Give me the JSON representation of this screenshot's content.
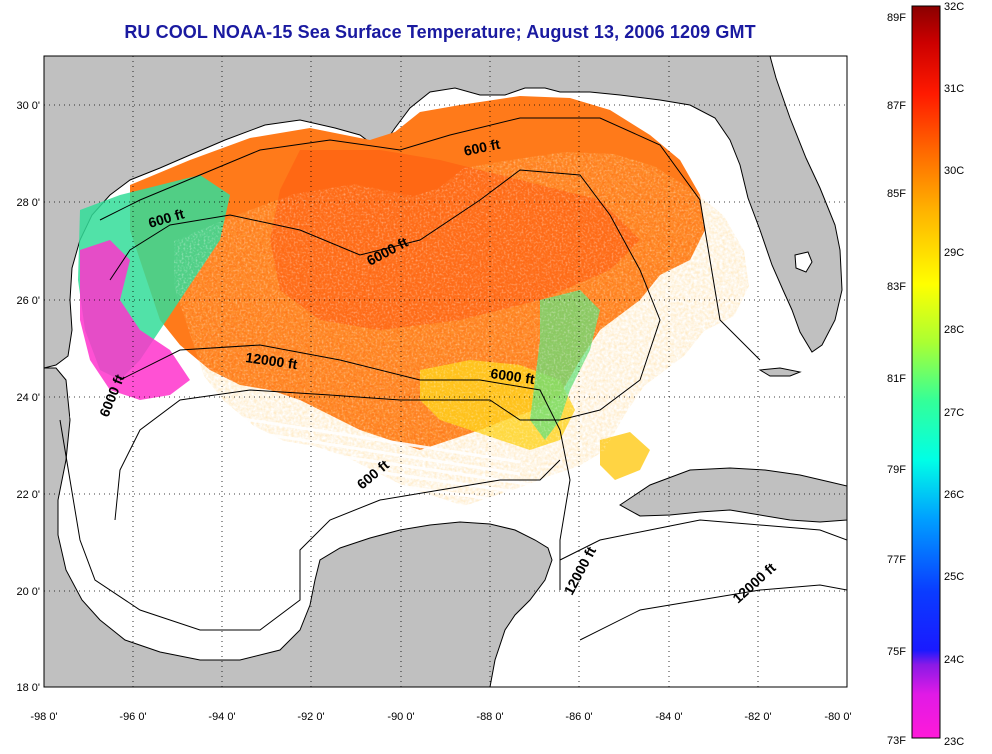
{
  "title": "RU COOL  NOAA-15  Sea Surface Temperature;  August 13, 2006 1209 GMT",
  "map": {
    "lon_range": [
      -98,
      -80
    ],
    "lat_range": [
      18,
      31
    ],
    "lon_ticks": [
      "-98 0'",
      "-96 0'",
      "-94 0'",
      "-92 0'",
      "-90 0'",
      "-88 0'",
      "-86 0'",
      "-84 0'",
      "-82 0'",
      "-80 0'"
    ],
    "lat_ticks": [
      "18 0'",
      "20 0'",
      "22 0'",
      "24 0'",
      "26 0'",
      "28 0'",
      "30 0'"
    ],
    "contour_labels": [
      "600 ft",
      "600 ft",
      "6000 ft",
      "12000 ft",
      "6000 ft",
      "6000 ft",
      "600 ft",
      "12000 ft",
      "12000 ft"
    ],
    "colors": {
      "land": "#c0c0c0",
      "water_nodata": "#ffffff",
      "grid": "#000000"
    }
  },
  "colorbar": {
    "left_labels": [
      "89F",
      "87F",
      "85F",
      "83F",
      "81F",
      "79F",
      "77F",
      "75F",
      "73F"
    ],
    "right_labels": [
      "32C",
      "31C",
      "30C",
      "29C",
      "28C",
      "27C",
      "26C",
      "25C",
      "24C",
      "23C"
    ],
    "range_c": [
      23,
      32
    ],
    "range_f": [
      73,
      89
    ]
  }
}
